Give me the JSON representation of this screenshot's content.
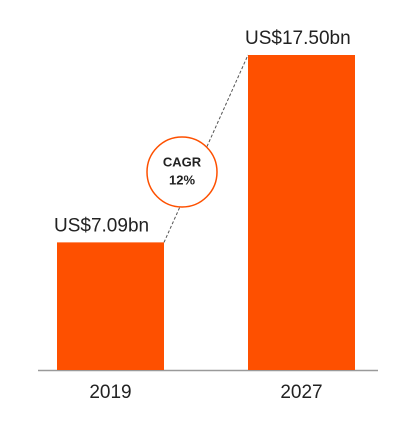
{
  "chart_data": {
    "type": "bar",
    "categories": [
      "2019",
      "2027"
    ],
    "values": [
      7.09,
      17.5
    ],
    "value_labels": [
      "US$7.09bn",
      "US$17.50bn"
    ],
    "color": "#fe5000",
    "annotation": [
      "CAGR",
      "12%"
    ]
  }
}
